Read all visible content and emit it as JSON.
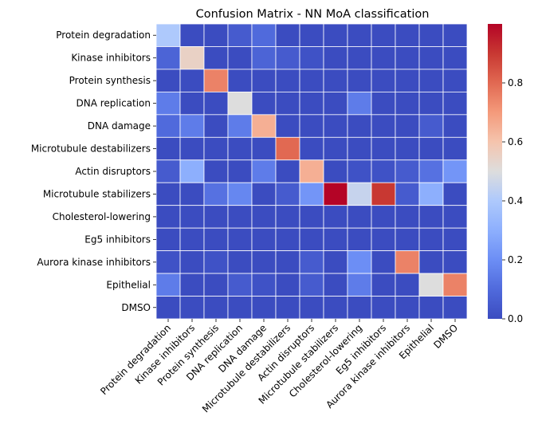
{
  "chart_data": {
    "type": "heatmap",
    "title": "Confusion Matrix - NN MoA classification",
    "xlabel": "",
    "ylabel": "",
    "row_labels": [
      "Protein degradation",
      "Kinase inhibitors",
      "Protein synthesis",
      "DNA replication",
      "DNA damage",
      "Microtubule destabilizers",
      "Actin disruptors",
      "Microtubule stabilizers",
      "Cholesterol-lowering",
      "Eg5 inhibitors",
      "Aurora kinase inhibitors",
      "Epithelial",
      "DMSO"
    ],
    "col_labels": [
      "Protein degradation",
      "Kinase inhibitors",
      "Protein synthesis",
      "DNA replication",
      "DNA damage",
      "Microtubule destabilizers",
      "Actin disruptors",
      "Microtubule stabilizers",
      "Cholesterol-lowering",
      "Eg5 inhibitors",
      "Aurora kinase inhibitors",
      "Epithelial",
      "DMSO"
    ],
    "values": [
      [
        0.4,
        0.0,
        0.0,
        0.05,
        0.1,
        0.0,
        0.0,
        0.0,
        0.0,
        0.0,
        0.0,
        0.0,
        0.0
      ],
      [
        0.08,
        0.55,
        0.0,
        0.0,
        0.08,
        0.05,
        0.02,
        0.0,
        0.0,
        0.0,
        0.0,
        0.0,
        0.0
      ],
      [
        0.0,
        0.0,
        0.75,
        0.0,
        0.0,
        0.0,
        0.0,
        0.0,
        0.0,
        0.0,
        0.0,
        0.0,
        0.0
      ],
      [
        0.15,
        0.0,
        0.0,
        0.5,
        0.0,
        0.0,
        0.0,
        0.0,
        0.15,
        0.0,
        0.0,
        0.0,
        0.0
      ],
      [
        0.1,
        0.15,
        0.0,
        0.15,
        0.65,
        0.0,
        0.0,
        0.0,
        0.0,
        0.0,
        0.0,
        0.05,
        0.0
      ],
      [
        0.0,
        0.0,
        0.0,
        0.0,
        0.0,
        0.8,
        0.0,
        0.0,
        0.0,
        0.0,
        0.0,
        0.0,
        0.0
      ],
      [
        0.05,
        0.3,
        0.0,
        0.0,
        0.15,
        0.0,
        0.65,
        0.0,
        0.02,
        0.02,
        0.05,
        0.12,
        0.22
      ],
      [
        0.0,
        0.0,
        0.12,
        0.18,
        0.0,
        0.05,
        0.22,
        1.0,
        0.45,
        0.9,
        0.05,
        0.3,
        0.0
      ],
      [
        0.0,
        0.0,
        0.0,
        0.0,
        0.0,
        0.0,
        0.0,
        0.0,
        0.0,
        0.0,
        0.0,
        0.0,
        0.0
      ],
      [
        0.0,
        0.0,
        0.0,
        0.0,
        0.0,
        0.0,
        0.0,
        0.0,
        0.0,
        0.0,
        0.0,
        0.0,
        0.0
      ],
      [
        0.02,
        0.0,
        0.02,
        0.0,
        0.0,
        0.0,
        0.05,
        0.0,
        0.2,
        0.0,
        0.75,
        0.0,
        0.0
      ],
      [
        0.15,
        0.0,
        0.0,
        0.05,
        0.02,
        0.0,
        0.05,
        0.0,
        0.15,
        0.0,
        0.0,
        0.5,
        0.75
      ],
      [
        0.0,
        0.0,
        0.0,
        0.0,
        0.0,
        0.0,
        0.0,
        0.0,
        0.0,
        0.0,
        0.0,
        0.0,
        0.0
      ]
    ],
    "colormap": "coolwarm",
    "vmin": 0,
    "vmax": 1,
    "colorbar_ticks": [
      0.0,
      0.2,
      0.4,
      0.6,
      0.8
    ],
    "colorbar_tick_labels": [
      "0.0",
      "0.2",
      "0.4",
      "0.6",
      "0.8"
    ],
    "cell_border_color": "#ffffff",
    "grid": false,
    "legend": "colorbar-right"
  }
}
